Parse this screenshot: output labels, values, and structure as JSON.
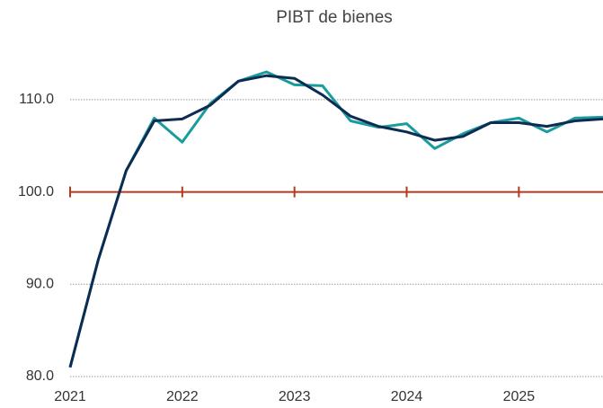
{
  "chart_data": {
    "type": "line",
    "title": "PIBT de bienes",
    "x": [
      2021,
      2021.25,
      2021.5,
      2021.75,
      2022,
      2022.25,
      2022.5,
      2022.75,
      2023,
      2023.25,
      2023.5,
      2023.75,
      2024,
      2024.25,
      2024.5,
      2024.75,
      2025,
      2025.25,
      2025.5,
      2025.75
    ],
    "series": [
      {
        "color": "#1a9c9c",
        "values": [
          81.0,
          92.6,
          102.3,
          108.0,
          105.4,
          109.6,
          112.0,
          113.0,
          111.6,
          111.5,
          107.7,
          107.0,
          107.4,
          104.7,
          106.3,
          107.5,
          108.0,
          106.5,
          108.0,
          108.1
        ]
      },
      {
        "color": "#0d2c54",
        "values": [
          81.0,
          92.6,
          102.3,
          107.7,
          107.9,
          109.4,
          112.0,
          112.6,
          112.3,
          110.5,
          108.2,
          107.1,
          106.5,
          105.6,
          106.0,
          107.5,
          107.5,
          107.1,
          107.7,
          107.9
        ]
      }
    ],
    "xlim": [
      2021,
      2025.75
    ],
    "xticks": [
      2021,
      2022,
      2023,
      2024,
      2025
    ],
    "ylim": [
      80,
      115
    ],
    "yticks": [
      {
        "value": 80,
        "label": "80.0"
      },
      {
        "value": 90,
        "label": "90.0"
      },
      {
        "value": 100,
        "label": "100.0"
      },
      {
        "value": 110,
        "label": "110.0"
      }
    ],
    "grid": true,
    "reference_line": {
      "value": 100,
      "color": "#b5391a"
    }
  }
}
